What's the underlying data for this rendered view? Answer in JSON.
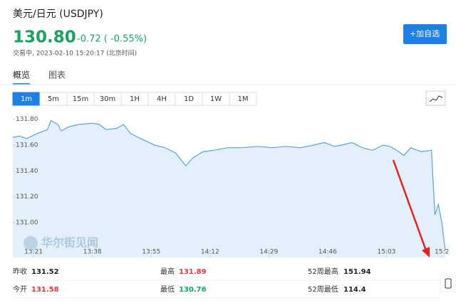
{
  "header": {
    "title": "美元/日元 (USDJPY)",
    "price": "130.80",
    "change": "-0.72 ( -0.55%)",
    "status": "交易中, 2023-02-10 15:20:17 (北京时间)",
    "button": "+加自选"
  },
  "tabs": [
    "概览",
    "图表"
  ],
  "ranges": [
    "1m",
    "5m",
    "15m",
    "30m",
    "1H",
    "4H",
    "1D",
    "1W",
    "1M"
  ],
  "chart_data": {
    "type": "line",
    "watermark": "华尔街见闻",
    "x": [
      0,
      2,
      4,
      7,
      10,
      11,
      13,
      14,
      16,
      19,
      23,
      25,
      27,
      30,
      32,
      34,
      37,
      41,
      44,
      47,
      50,
      52,
      55,
      58,
      62,
      66,
      71,
      75,
      79,
      83,
      87,
      90,
      93,
      95,
      98,
      101,
      104,
      107,
      109,
      111,
      113,
      115,
      118,
      121,
      122,
      123,
      124,
      125
    ],
    "series": [
      {
        "name": "USDJPY",
        "color": "#5ba3e0",
        "values": [
          131.66,
          131.67,
          131.65,
          131.69,
          131.72,
          131.79,
          131.76,
          131.71,
          131.74,
          131.76,
          131.77,
          131.76,
          131.72,
          131.73,
          131.76,
          131.69,
          131.65,
          131.6,
          131.58,
          131.54,
          131.44,
          131.5,
          131.55,
          131.56,
          131.58,
          131.58,
          131.59,
          131.58,
          131.59,
          131.58,
          131.6,
          131.62,
          131.59,
          131.6,
          131.62,
          131.58,
          131.56,
          131.6,
          131.59,
          131.56,
          131.52,
          131.58,
          131.55,
          131.56,
          131.06,
          131.14,
          131,
          130.78
        ]
      }
    ],
    "xlim": [
      0,
      125
    ],
    "ylim": [
      130.73,
      131.87
    ],
    "xticks": [
      {
        "value": 6,
        "label": "13:21"
      },
      {
        "value": 23,
        "label": "13:38"
      },
      {
        "value": 40,
        "label": "13:55"
      },
      {
        "value": 57,
        "label": "14:12"
      },
      {
        "value": 74,
        "label": "14:29"
      },
      {
        "value": 91,
        "label": "14:46"
      },
      {
        "value": 108,
        "label": "15:03"
      },
      {
        "value": 124,
        "label": "15:2"
      }
    ],
    "yticks": [
      {
        "value": 131.8,
        "label": "131.80"
      },
      {
        "value": 131.6,
        "label": "131.60"
      },
      {
        "value": 131.4,
        "label": "131.40"
      },
      {
        "value": 131.2,
        "label": "131.20"
      },
      {
        "value": 131,
        "label": "131.00"
      }
    ]
  },
  "stats": [
    [
      {
        "label": "昨收",
        "value": "131.52",
        "color": "#222"
      },
      {
        "label": "最高",
        "value": "131.89",
        "color": "#e8383d"
      },
      {
        "label": "52周最高",
        "value": "151.94",
        "color": "#222"
      }
    ],
    [
      {
        "label": "今开",
        "value": "131.58",
        "color": "#e8383d"
      },
      {
        "label": "最低",
        "value": "130.76",
        "color": "#1aa260"
      },
      {
        "label": "52周最低",
        "value": "114.4",
        "color": "#222"
      }
    ]
  ]
}
